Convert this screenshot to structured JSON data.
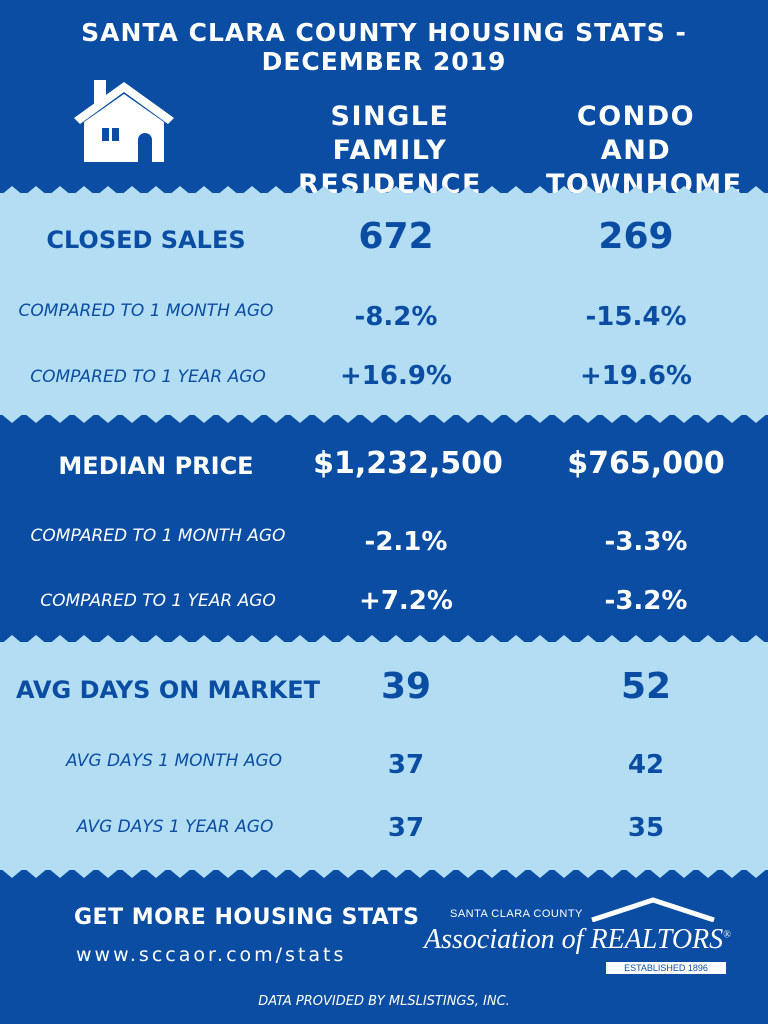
{
  "title": "SANTA CLARA COUNTY HOUSING STATS - DECEMBER 2019",
  "icons": {
    "house": "house-icon",
    "logo_roof": "roof-icon"
  },
  "colors": {
    "dark_blue": "#0a4da3",
    "light_blue": "#b3ddf3",
    "white": "#ffffff"
  },
  "columns": {
    "sfr": [
      "SINGLE FAMILY",
      "RESIDENCE"
    ],
    "condo": [
      "CONDO AND",
      "TOWNHOME"
    ]
  },
  "closed_sales": {
    "label": "CLOSED SALES",
    "sfr": "672",
    "condo": "269",
    "month_label": "COMPARED TO 1 MONTH AGO",
    "month_sfr": "-8.2%",
    "month_condo": "-15.4%",
    "year_label": "COMPARED TO 1 YEAR AGO",
    "year_sfr": "+16.9%",
    "year_condo": "+19.6%"
  },
  "median_price": {
    "label": "MEDIAN PRICE",
    "sfr": "$1,232,500",
    "condo": "$765,000",
    "month_label": "COMPARED TO 1 MONTH AGO",
    "month_sfr": "-2.1%",
    "month_condo": "-3.3%",
    "year_label": "COMPARED TO 1 YEAR AGO",
    "year_sfr": "+7.2%",
    "year_condo": "-3.2%"
  },
  "days_on_market": {
    "label": "AVG DAYS ON MARKET",
    "sfr": "39",
    "condo": "52",
    "month_label": "AVG DAYS 1 MONTH AGO",
    "month_sfr": "37",
    "month_condo": "42",
    "year_label": "AVG DAYS 1 YEAR AGO",
    "year_sfr": "37",
    "year_condo": "35"
  },
  "cta": {
    "heading": "GET MORE HOUSING STATS",
    "url": "www.sccaor.com/stats"
  },
  "logo": {
    "county": "SANTA CLARA COUNTY",
    "name": "Association of REALTORS",
    "mark": "®",
    "established": "ESTABLISHED 1896"
  },
  "footer": "DATA PROVIDED BY MLSLISTINGS, INC."
}
